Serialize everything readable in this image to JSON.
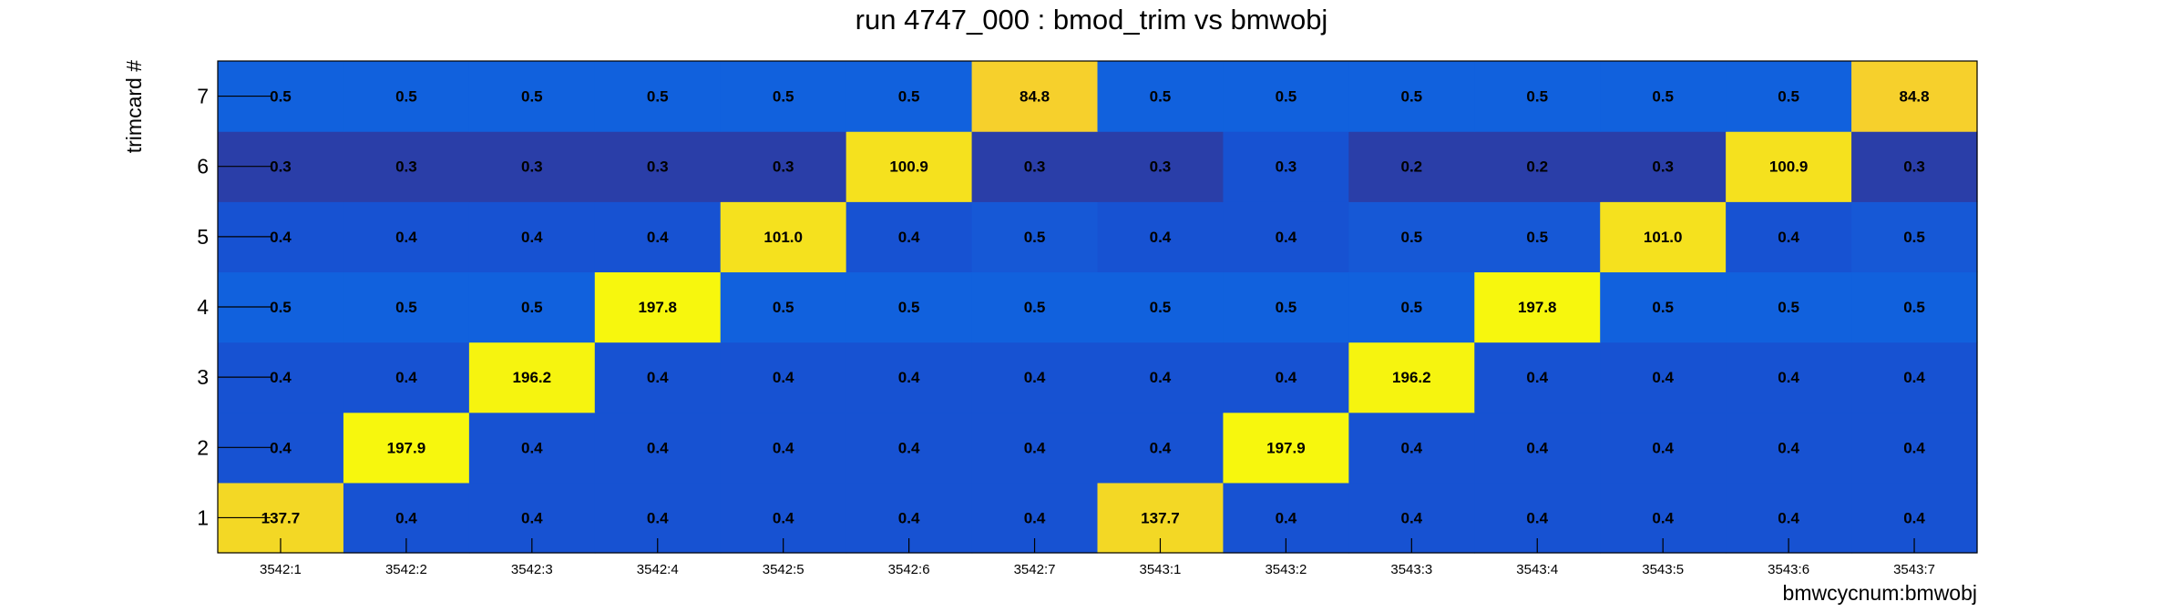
{
  "chart_data": {
    "type": "heatmap",
    "title": "run 4747_000 : bmod_trim vs bmwobj",
    "xlabel": "bmwcycnum:bmwobj",
    "ylabel": "trimcard #",
    "x_categories": [
      "3542:1",
      "3542:2",
      "3542:3",
      "3542:4",
      "3542:5",
      "3542:6",
      "3542:7",
      "3543:1",
      "3543:2",
      "3543:3",
      "3543:4",
      "3543:5",
      "3543:6",
      "3543:7"
    ],
    "y_categories": [
      "1",
      "2",
      "3",
      "4",
      "5",
      "6",
      "7"
    ],
    "values": [
      [
        137.7,
        0.4,
        0.4,
        0.4,
        0.4,
        0.4,
        0.4,
        137.7,
        0.4,
        0.4,
        0.4,
        0.4,
        0.4,
        0.4
      ],
      [
        0.4,
        197.9,
        0.4,
        0.4,
        0.4,
        0.4,
        0.4,
        0.4,
        197.9,
        0.4,
        0.4,
        0.4,
        0.4,
        0.4
      ],
      [
        0.4,
        0.4,
        196.2,
        0.4,
        0.4,
        0.4,
        0.4,
        0.4,
        0.4,
        196.2,
        0.4,
        0.4,
        0.4,
        0.4
      ],
      [
        0.5,
        0.5,
        0.5,
        197.8,
        0.5,
        0.5,
        0.5,
        0.5,
        0.5,
        0.5,
        197.8,
        0.5,
        0.5,
        0.5
      ],
      [
        0.4,
        0.4,
        0.4,
        0.4,
        101.0,
        0.4,
        0.5,
        0.4,
        0.4,
        0.5,
        0.5,
        101.0,
        0.4,
        0.5
      ],
      [
        0.3,
        0.3,
        0.3,
        0.3,
        0.3,
        100.9,
        0.3,
        0.3,
        0.3,
        0.2,
        0.2,
        0.3,
        100.9,
        0.3
      ],
      [
        0.5,
        0.5,
        0.5,
        0.5,
        0.5,
        0.5,
        84.8,
        0.5,
        0.5,
        0.5,
        0.5,
        0.5,
        0.5,
        84.8
      ]
    ],
    "value_labels": [
      [
        "137.7",
        "0.4",
        "0.4",
        "0.4",
        "0.4",
        "0.4",
        "0.4",
        "137.7",
        "0.4",
        "0.4",
        "0.4",
        "0.4",
        "0.4",
        "0.4"
      ],
      [
        "0.4",
        "197.9",
        "0.4",
        "0.4",
        "0.4",
        "0.4",
        "0.4",
        "0.4",
        "197.9",
        "0.4",
        "0.4",
        "0.4",
        "0.4",
        "0.4"
      ],
      [
        "0.4",
        "0.4",
        "196.2",
        "0.4",
        "0.4",
        "0.4",
        "0.4",
        "0.4",
        "0.4",
        "196.2",
        "0.4",
        "0.4",
        "0.4",
        "0.4"
      ],
      [
        "0.5",
        "0.5",
        "0.5",
        "197.8",
        "0.5",
        "0.5",
        "0.5",
        "0.5",
        "0.5",
        "0.5",
        "197.8",
        "0.5",
        "0.5",
        "0.5"
      ],
      [
        "0.4",
        "0.4",
        "0.4",
        "0.4",
        "101.0",
        "0.4",
        "0.5",
        "0.4",
        "0.4",
        "0.5",
        "0.5",
        "101.0",
        "0.4",
        "0.5"
      ],
      [
        "0.3",
        "0.3",
        "0.3",
        "0.3",
        "0.3",
        "100.9",
        "0.3",
        "0.3",
        "0.3",
        "0.2",
        "0.2",
        "0.3",
        "100.9",
        "0.3"
      ],
      [
        "0.5",
        "0.5",
        "0.5",
        "0.5",
        "0.5",
        "0.5",
        "84.8",
        "0.5",
        "0.5",
        "0.5",
        "0.5",
        "0.5",
        "0.5",
        "84.8"
      ]
    ],
    "cell_colors": [
      [
        "#f3d825",
        "#1752d2",
        "#1752d2",
        "#1752d2",
        "#1752d2",
        "#1752d2",
        "#1752d2",
        "#f3d825",
        "#1752d2",
        "#1752d2",
        "#1752d2",
        "#1752d2",
        "#1752d2",
        "#1752d2"
      ],
      [
        "#1752d2",
        "#f7f70d",
        "#1752d2",
        "#1752d2",
        "#1752d2",
        "#1752d2",
        "#1752d2",
        "#1752d2",
        "#f7f70d",
        "#1752d2",
        "#1752d2",
        "#1752d2",
        "#1752d2",
        "#1752d2"
      ],
      [
        "#1752d2",
        "#1752d2",
        "#f6f40f",
        "#1752d2",
        "#1752d2",
        "#1752d2",
        "#1752d2",
        "#1752d2",
        "#1752d2",
        "#f6f40f",
        "#1752d2",
        "#1752d2",
        "#1752d2",
        "#1752d2"
      ],
      [
        "#1161dd",
        "#1161dd",
        "#1161dd",
        "#f7f70d",
        "#1161dd",
        "#1161dd",
        "#1161dd",
        "#1161dd",
        "#1161dd",
        "#1161dd",
        "#f7f70d",
        "#1161dd",
        "#1161dd",
        "#1161dd"
      ],
      [
        "#1752d2",
        "#1752d2",
        "#1752d2",
        "#1752d2",
        "#f5e11e",
        "#1752d2",
        "#1658d6",
        "#1752d2",
        "#1752d2",
        "#1658d6",
        "#1658d6",
        "#f5e11e",
        "#1752d2",
        "#1658d6"
      ],
      [
        "#2a3ea8",
        "#2a3ea8",
        "#2a3ea8",
        "#2a3ea8",
        "#2a3ea8",
        "#f5e11e",
        "#2a3ea8",
        "#2a3ea8",
        "#1752d2",
        "#2a3ea8",
        "#2a3ea8",
        "#2a3ea8",
        "#f5e11e",
        "#2a3ea8"
      ],
      [
        "#1161dd",
        "#1161dd",
        "#1161dd",
        "#1161dd",
        "#1161dd",
        "#1161dd",
        "#f6d02c",
        "#1161dd",
        "#1161dd",
        "#1161dd",
        "#1161dd",
        "#1161dd",
        "#1161dd",
        "#f6d02c"
      ]
    ],
    "grid": false,
    "legend": "none"
  }
}
